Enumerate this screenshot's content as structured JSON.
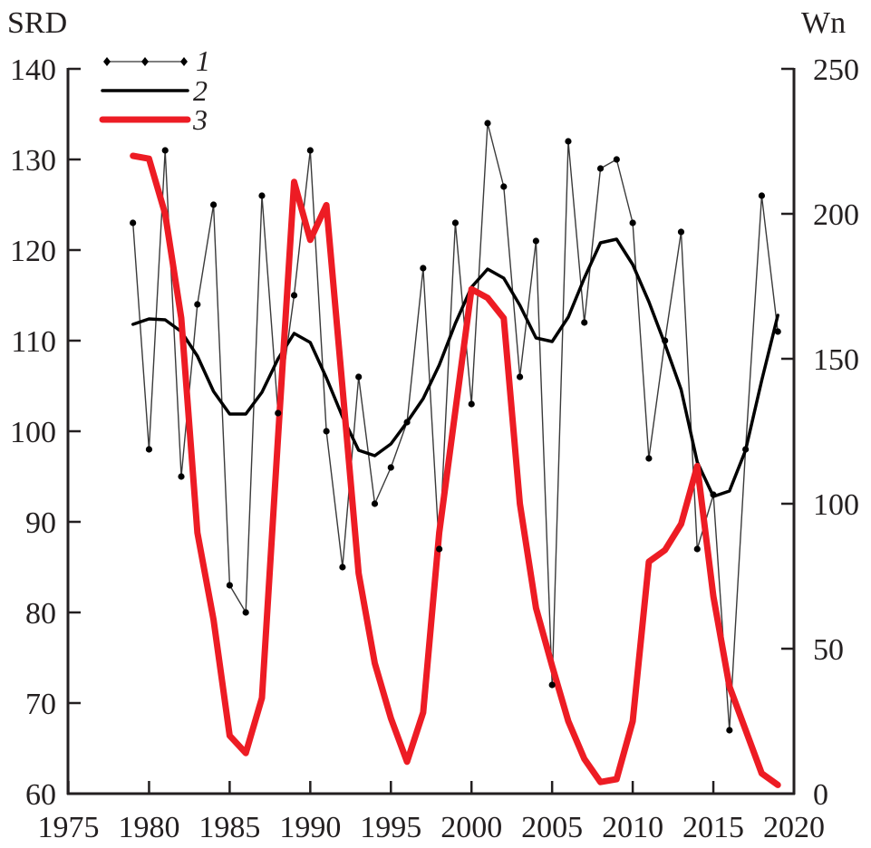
{
  "chart_data": {
    "type": "line",
    "title": "",
    "xlabel": "",
    "ylabel_left": "SRD",
    "ylabel_right": "Wn",
    "xlim": [
      1975,
      2020
    ],
    "ylim_left": [
      60,
      140
    ],
    "ylim_right": [
      0,
      250
    ],
    "x_ticks": [
      "1975",
      "1980",
      "1985",
      "1990",
      "1995",
      "2000",
      "2005",
      "2010",
      "2015",
      "2020"
    ],
    "y_left_ticks": [
      "60",
      "70",
      "80",
      "90",
      "100",
      "110",
      "120",
      "130",
      "140"
    ],
    "y_right_ticks": [
      "0",
      "50",
      "100",
      "150",
      "200",
      "250"
    ],
    "grid": false,
    "legend_placement": "top-left",
    "x": [
      1979,
      1980,
      1981,
      1982,
      1983,
      1984,
      1985,
      1986,
      1987,
      1988,
      1989,
      1990,
      1991,
      1992,
      1993,
      1994,
      1995,
      1996,
      1997,
      1998,
      1999,
      2000,
      2001,
      2002,
      2003,
      2004,
      2005,
      2006,
      2007,
      2008,
      2009,
      2010,
      2011,
      2012,
      2013,
      2014,
      2015,
      2016,
      2017,
      2018,
      2019
    ],
    "series": [
      {
        "name": "1",
        "axis": "left",
        "color": "#231f20",
        "style": "thin line with dot markers",
        "values": [
          123,
          98,
          131,
          95,
          114,
          125,
          83,
          80,
          126,
          102,
          115,
          131,
          100,
          85,
          106,
          92,
          96,
          101,
          118,
          87,
          123,
          103,
          134,
          127,
          106,
          121,
          72,
          132,
          112,
          129,
          130,
          123,
          97,
          110,
          122,
          87,
          93,
          67,
          98,
          126,
          111
        ]
      },
      {
        "name": "2",
        "axis": "left",
        "color": "#000000",
        "style": "medium line",
        "values": [
          111.8,
          112.4,
          112.3,
          111.0,
          108.3,
          104.4,
          101.9,
          101.9,
          104.3,
          108.0,
          110.8,
          109.8,
          105.9,
          101.6,
          97.9,
          97.3,
          98.6,
          101.0,
          103.6,
          107.3,
          111.9,
          115.9,
          117.9,
          116.9,
          113.9,
          110.3,
          109.9,
          112.6,
          116.9,
          120.8,
          121.2,
          118.4,
          114.3,
          109.6,
          104.6,
          96.6,
          92.8,
          93.4,
          97.9,
          105.6,
          112.8
        ]
      },
      {
        "name": "3",
        "axis": "right",
        "color": "#ed1c24",
        "style": "thick line",
        "values": [
          220,
          219,
          200,
          164,
          90,
          60,
          20,
          14,
          33,
          123,
          211,
          191,
          203,
          140,
          76,
          45,
          26,
          11,
          28,
          90,
          132,
          174,
          171,
          164,
          100,
          64,
          44,
          25,
          12,
          4,
          5,
          25,
          80,
          84,
          93,
          113,
          68,
          37,
          22,
          7,
          3
        ]
      }
    ]
  }
}
